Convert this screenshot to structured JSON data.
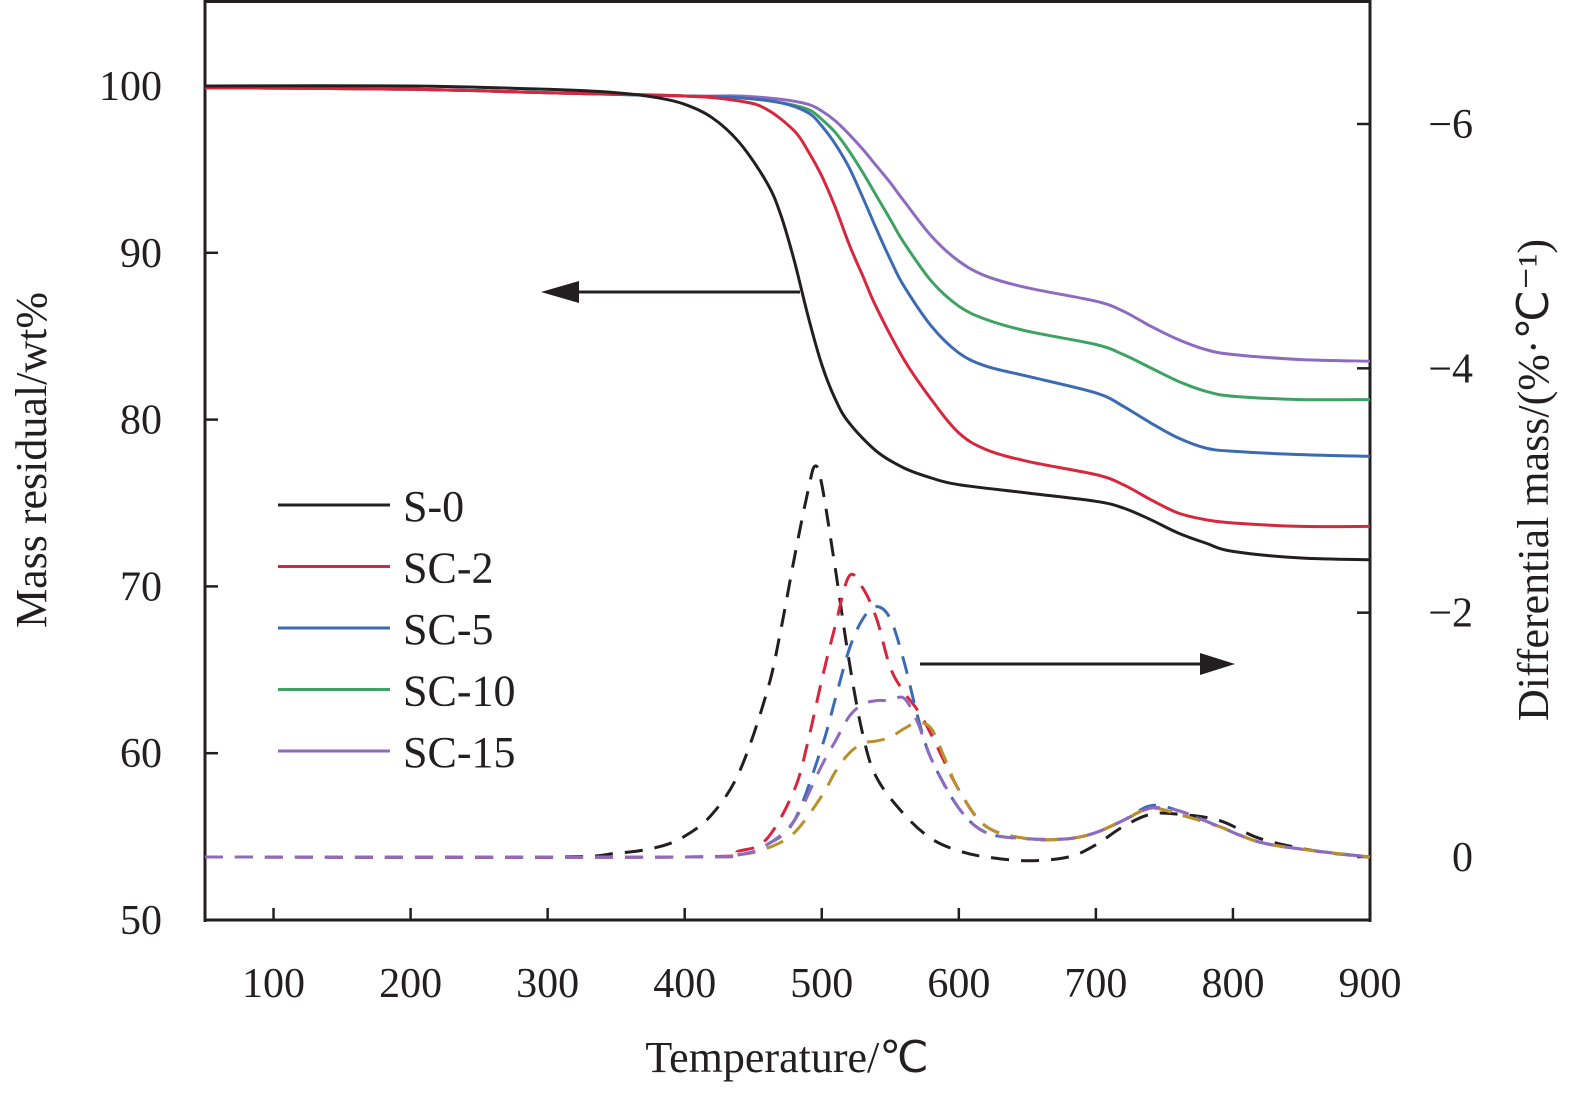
{
  "chart_data": {
    "type": "line",
    "title": "",
    "xlabel": "Temperature/℃",
    "ylabel_left": "Mass residual/wt%",
    "ylabel_right": "Differential mass/(%·℃⁻¹)",
    "xlim": [
      50,
      900
    ],
    "ylim_left": [
      50,
      105
    ],
    "ylim_right_top_to_bottom": [
      -7.1,
      0.5
    ],
    "right_axis_inverted": true,
    "grid": false,
    "x_ticks": [
      100,
      200,
      300,
      400,
      500,
      600,
      700,
      800,
      900
    ],
    "x_tick_labels": [
      "100",
      "200",
      "300",
      "400",
      "500",
      "600",
      "700",
      "800",
      "900"
    ],
    "y_left_ticks": [
      100,
      90,
      80,
      70,
      60,
      50
    ],
    "y_left_tick_labels": [
      "100",
      "90",
      "80",
      "70",
      "60",
      "50"
    ],
    "y_right_ticks": [
      -6,
      -4,
      -2,
      0
    ],
    "y_right_tick_labels": [
      "−6",
      "−4",
      "−2",
      "0"
    ],
    "legend": {
      "placement": "center-left",
      "entries": [
        "S-0",
        "SC-2",
        "SC-5",
        "SC-10",
        "SC-15"
      ]
    },
    "annotations": [
      {
        "type": "arrow",
        "direction": "left",
        "meaning": "solid TG curves read on left axis"
      },
      {
        "type": "arrow",
        "direction": "right",
        "meaning": "dashed DTG curves read on right axis"
      }
    ],
    "tg_series": [
      {
        "name": "S-0",
        "color": "#231f20",
        "x": [
          50,
          200,
          300,
          350,
          380,
          400,
          420,
          440,
          460,
          470,
          480,
          490,
          500,
          510,
          520,
          540,
          560,
          580,
          600,
          650,
          700,
          720,
          740,
          760,
          780,
          800,
          850,
          900
        ],
        "y": [
          100,
          100,
          99.8,
          99.6,
          99.3,
          98.9,
          98.1,
          96.6,
          94.2,
          92.3,
          89.5,
          86.2,
          83.3,
          81.2,
          79.8,
          78.1,
          77.1,
          76.5,
          76.1,
          75.6,
          75.1,
          74.7,
          74.0,
          73.2,
          72.6,
          72.1,
          71.7,
          71.6
        ]
      },
      {
        "name": "SC-2",
        "color": "#d7263d",
        "x": [
          50,
          200,
          300,
          400,
          440,
          460,
          480,
          490,
          500,
          510,
          520,
          530,
          540,
          560,
          580,
          600,
          620,
          650,
          700,
          720,
          740,
          760,
          780,
          800,
          850,
          900
        ],
        "y": [
          99.9,
          99.8,
          99.6,
          99.4,
          99.1,
          98.6,
          97.3,
          96.1,
          94.6,
          92.7,
          90.5,
          88.6,
          86.7,
          83.6,
          81.2,
          79.2,
          78.2,
          77.5,
          76.7,
          76.1,
          75.2,
          74.4,
          74.0,
          73.8,
          73.6,
          73.6
        ]
      },
      {
        "name": "SC-5",
        "color": "#3d6bb3",
        "x": [
          50,
          200,
          300,
          400,
          440,
          470,
          490,
          500,
          510,
          520,
          530,
          540,
          550,
          560,
          580,
          600,
          620,
          650,
          700,
          720,
          740,
          760,
          780,
          800,
          850,
          900
        ],
        "y": [
          99.9,
          99.8,
          99.6,
          99.4,
          99.3,
          99.0,
          98.4,
          97.6,
          96.5,
          95.1,
          93.3,
          91.4,
          89.6,
          88.0,
          85.6,
          84.0,
          83.2,
          82.6,
          81.6,
          80.8,
          79.8,
          78.9,
          78.3,
          78.1,
          77.9,
          77.8
        ]
      },
      {
        "name": "SC-10",
        "color": "#3ea262",
        "x": [
          50,
          200,
          300,
          400,
          440,
          470,
          490,
          500,
          510,
          520,
          530,
          540,
          550,
          560,
          580,
          600,
          620,
          650,
          700,
          720,
          740,
          760,
          780,
          800,
          850,
          900
        ],
        "y": [
          99.9,
          99.8,
          99.6,
          99.4,
          99.3,
          99.0,
          98.6,
          98.0,
          97.2,
          96.1,
          94.8,
          93.4,
          92.0,
          90.6,
          88.3,
          86.8,
          86.0,
          85.3,
          84.5,
          83.9,
          83.1,
          82.3,
          81.7,
          81.4,
          81.2,
          81.2
        ]
      },
      {
        "name": "SC-15",
        "color": "#8e6bbf",
        "x": [
          50,
          200,
          300,
          400,
          440,
          470,
          490,
          500,
          510,
          520,
          530,
          540,
          550,
          560,
          580,
          600,
          620,
          650,
          700,
          720,
          740,
          760,
          780,
          800,
          850,
          900
        ],
        "y": [
          99.9,
          99.8,
          99.6,
          99.4,
          99.4,
          99.2,
          98.9,
          98.5,
          97.9,
          97.1,
          96.2,
          95.2,
          94.2,
          93.1,
          91.0,
          89.5,
          88.6,
          87.9,
          87.1,
          86.5,
          85.6,
          84.8,
          84.2,
          83.9,
          83.6,
          83.5
        ]
      }
    ],
    "dtg_series": [
      {
        "name": "S-0",
        "color": "#231f20",
        "x": [
          50,
          300,
          350,
          380,
          400,
          420,
          440,
          460,
          470,
          480,
          490,
          495,
          500,
          510,
          520,
          530,
          540,
          560,
          580,
          600,
          620,
          650,
          680,
          700,
          720,
          740,
          760,
          790,
          820,
          860,
          900
        ],
        "y": [
          0,
          0,
          -0.03,
          -0.08,
          -0.17,
          -0.35,
          -0.7,
          -1.35,
          -1.85,
          -2.45,
          -3.0,
          -3.2,
          -3.05,
          -2.35,
          -1.6,
          -1.0,
          -0.65,
          -0.35,
          -0.15,
          -0.05,
          0.0,
          0.03,
          0.0,
          -0.1,
          -0.25,
          -0.35,
          -0.35,
          -0.3,
          -0.15,
          -0.05,
          0
        ]
      },
      {
        "name": "SC-2",
        "color": "#d7263d",
        "x": [
          50,
          400,
          440,
          460,
          480,
          490,
          500,
          510,
          520,
          530,
          540,
          550,
          560,
          570,
          580,
          600,
          620,
          650,
          680,
          700,
          720,
          740,
          760,
          790,
          820,
          860,
          900
        ],
        "y": [
          0,
          0,
          -0.05,
          -0.15,
          -0.55,
          -0.95,
          -1.45,
          -1.9,
          -2.3,
          -2.2,
          -1.95,
          -1.55,
          -1.35,
          -1.2,
          -1.0,
          -0.55,
          -0.25,
          -0.15,
          -0.15,
          -0.2,
          -0.3,
          -0.4,
          -0.35,
          -0.25,
          -0.12,
          -0.05,
          0
        ]
      },
      {
        "name": "SC-5",
        "color": "#3d6bb3",
        "x": [
          50,
          400,
          440,
          460,
          480,
          500,
          510,
          520,
          530,
          540,
          550,
          560,
          570,
          580,
          600,
          620,
          650,
          680,
          700,
          720,
          740,
          760,
          790,
          820,
          860,
          900
        ],
        "y": [
          0,
          0,
          -0.02,
          -0.1,
          -0.3,
          -0.9,
          -1.3,
          -1.7,
          -1.95,
          -2.05,
          -1.95,
          -1.6,
          -1.15,
          -0.8,
          -0.4,
          -0.2,
          -0.15,
          -0.15,
          -0.2,
          -0.3,
          -0.42,
          -0.38,
          -0.25,
          -0.12,
          -0.05,
          0
        ]
      },
      {
        "name": "SC-10",
        "color": "#b8902c",
        "x": [
          50,
          400,
          440,
          460,
          480,
          500,
          510,
          520,
          530,
          540,
          550,
          560,
          570,
          580,
          590,
          600,
          620,
          650,
          680,
          700,
          720,
          740,
          760,
          790,
          820,
          860,
          900
        ],
        "y": [
          0,
          0,
          -0.02,
          -0.07,
          -0.2,
          -0.5,
          -0.7,
          -0.85,
          -0.93,
          -0.95,
          -0.98,
          -1.05,
          -1.1,
          -1.05,
          -0.8,
          -0.55,
          -0.25,
          -0.15,
          -0.15,
          -0.2,
          -0.3,
          -0.4,
          -0.35,
          -0.25,
          -0.12,
          -0.05,
          0
        ]
      },
      {
        "name": "SC-15",
        "color": "#8e6bbf",
        "x": [
          50,
          400,
          440,
          460,
          480,
          500,
          510,
          520,
          530,
          540,
          550,
          560,
          570,
          580,
          600,
          620,
          650,
          680,
          700,
          720,
          740,
          760,
          790,
          820,
          860,
          900
        ],
        "y": [
          0,
          0,
          -0.02,
          -0.1,
          -0.3,
          -0.75,
          -0.95,
          -1.15,
          -1.25,
          -1.28,
          -1.28,
          -1.3,
          -1.1,
          -0.8,
          -0.4,
          -0.2,
          -0.15,
          -0.15,
          -0.2,
          -0.3,
          -0.4,
          -0.38,
          -0.25,
          -0.12,
          -0.05,
          0
        ]
      }
    ]
  }
}
